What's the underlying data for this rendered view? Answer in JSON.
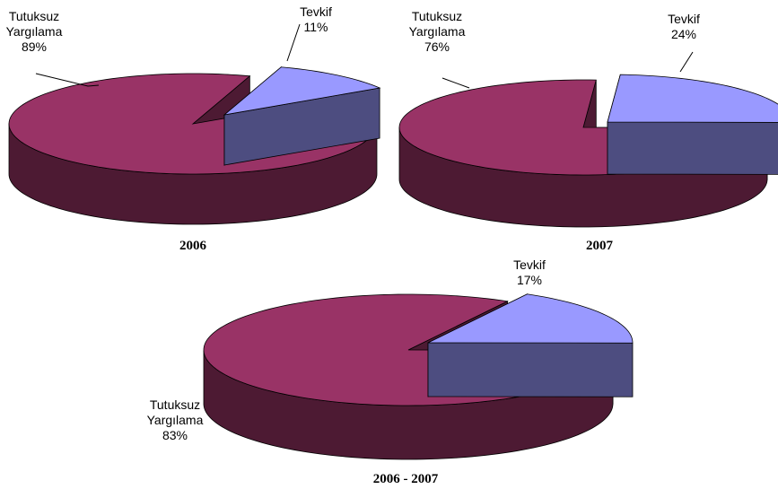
{
  "colors": {
    "tutuksuz_top": "#993366",
    "tutuksuz_side": "#4d1a33",
    "tevkif_top": "#9999ff",
    "tevkif_side": "#4d4d80",
    "edge": "#000000"
  },
  "chart_data": [
    {
      "type": "pie",
      "title": "2006",
      "slices": [
        {
          "label": "Tutuksuz Yargılama",
          "label_lines": [
            "Tutuksuz",
            "Yargılama"
          ],
          "value": 89,
          "value_label": "89%"
        },
        {
          "label": "Tevkif",
          "label_lines": [
            "Tevkif"
          ],
          "value": 11,
          "value_label": "11%",
          "exploded": true
        }
      ]
    },
    {
      "type": "pie",
      "title": "2007",
      "slices": [
        {
          "label": "Tutuksuz Yargılama",
          "label_lines": [
            "Tutuksuz",
            "Yargılama"
          ],
          "value": 76,
          "value_label": "76%"
        },
        {
          "label": "Tevkif",
          "label_lines": [
            "Tevkif"
          ],
          "value": 24,
          "value_label": "24%",
          "exploded": true
        }
      ]
    },
    {
      "type": "pie",
      "title": "2006 - 2007",
      "slices": [
        {
          "label": "Tutuksuz Yargılama",
          "label_lines": [
            "Tutuksuz",
            "Yargılama"
          ],
          "value": 83,
          "value_label": "83%"
        },
        {
          "label": "Tevkif",
          "label_lines": [
            "Tevkif"
          ],
          "value": 17,
          "value_label": "17%",
          "exploded": true
        }
      ]
    }
  ]
}
